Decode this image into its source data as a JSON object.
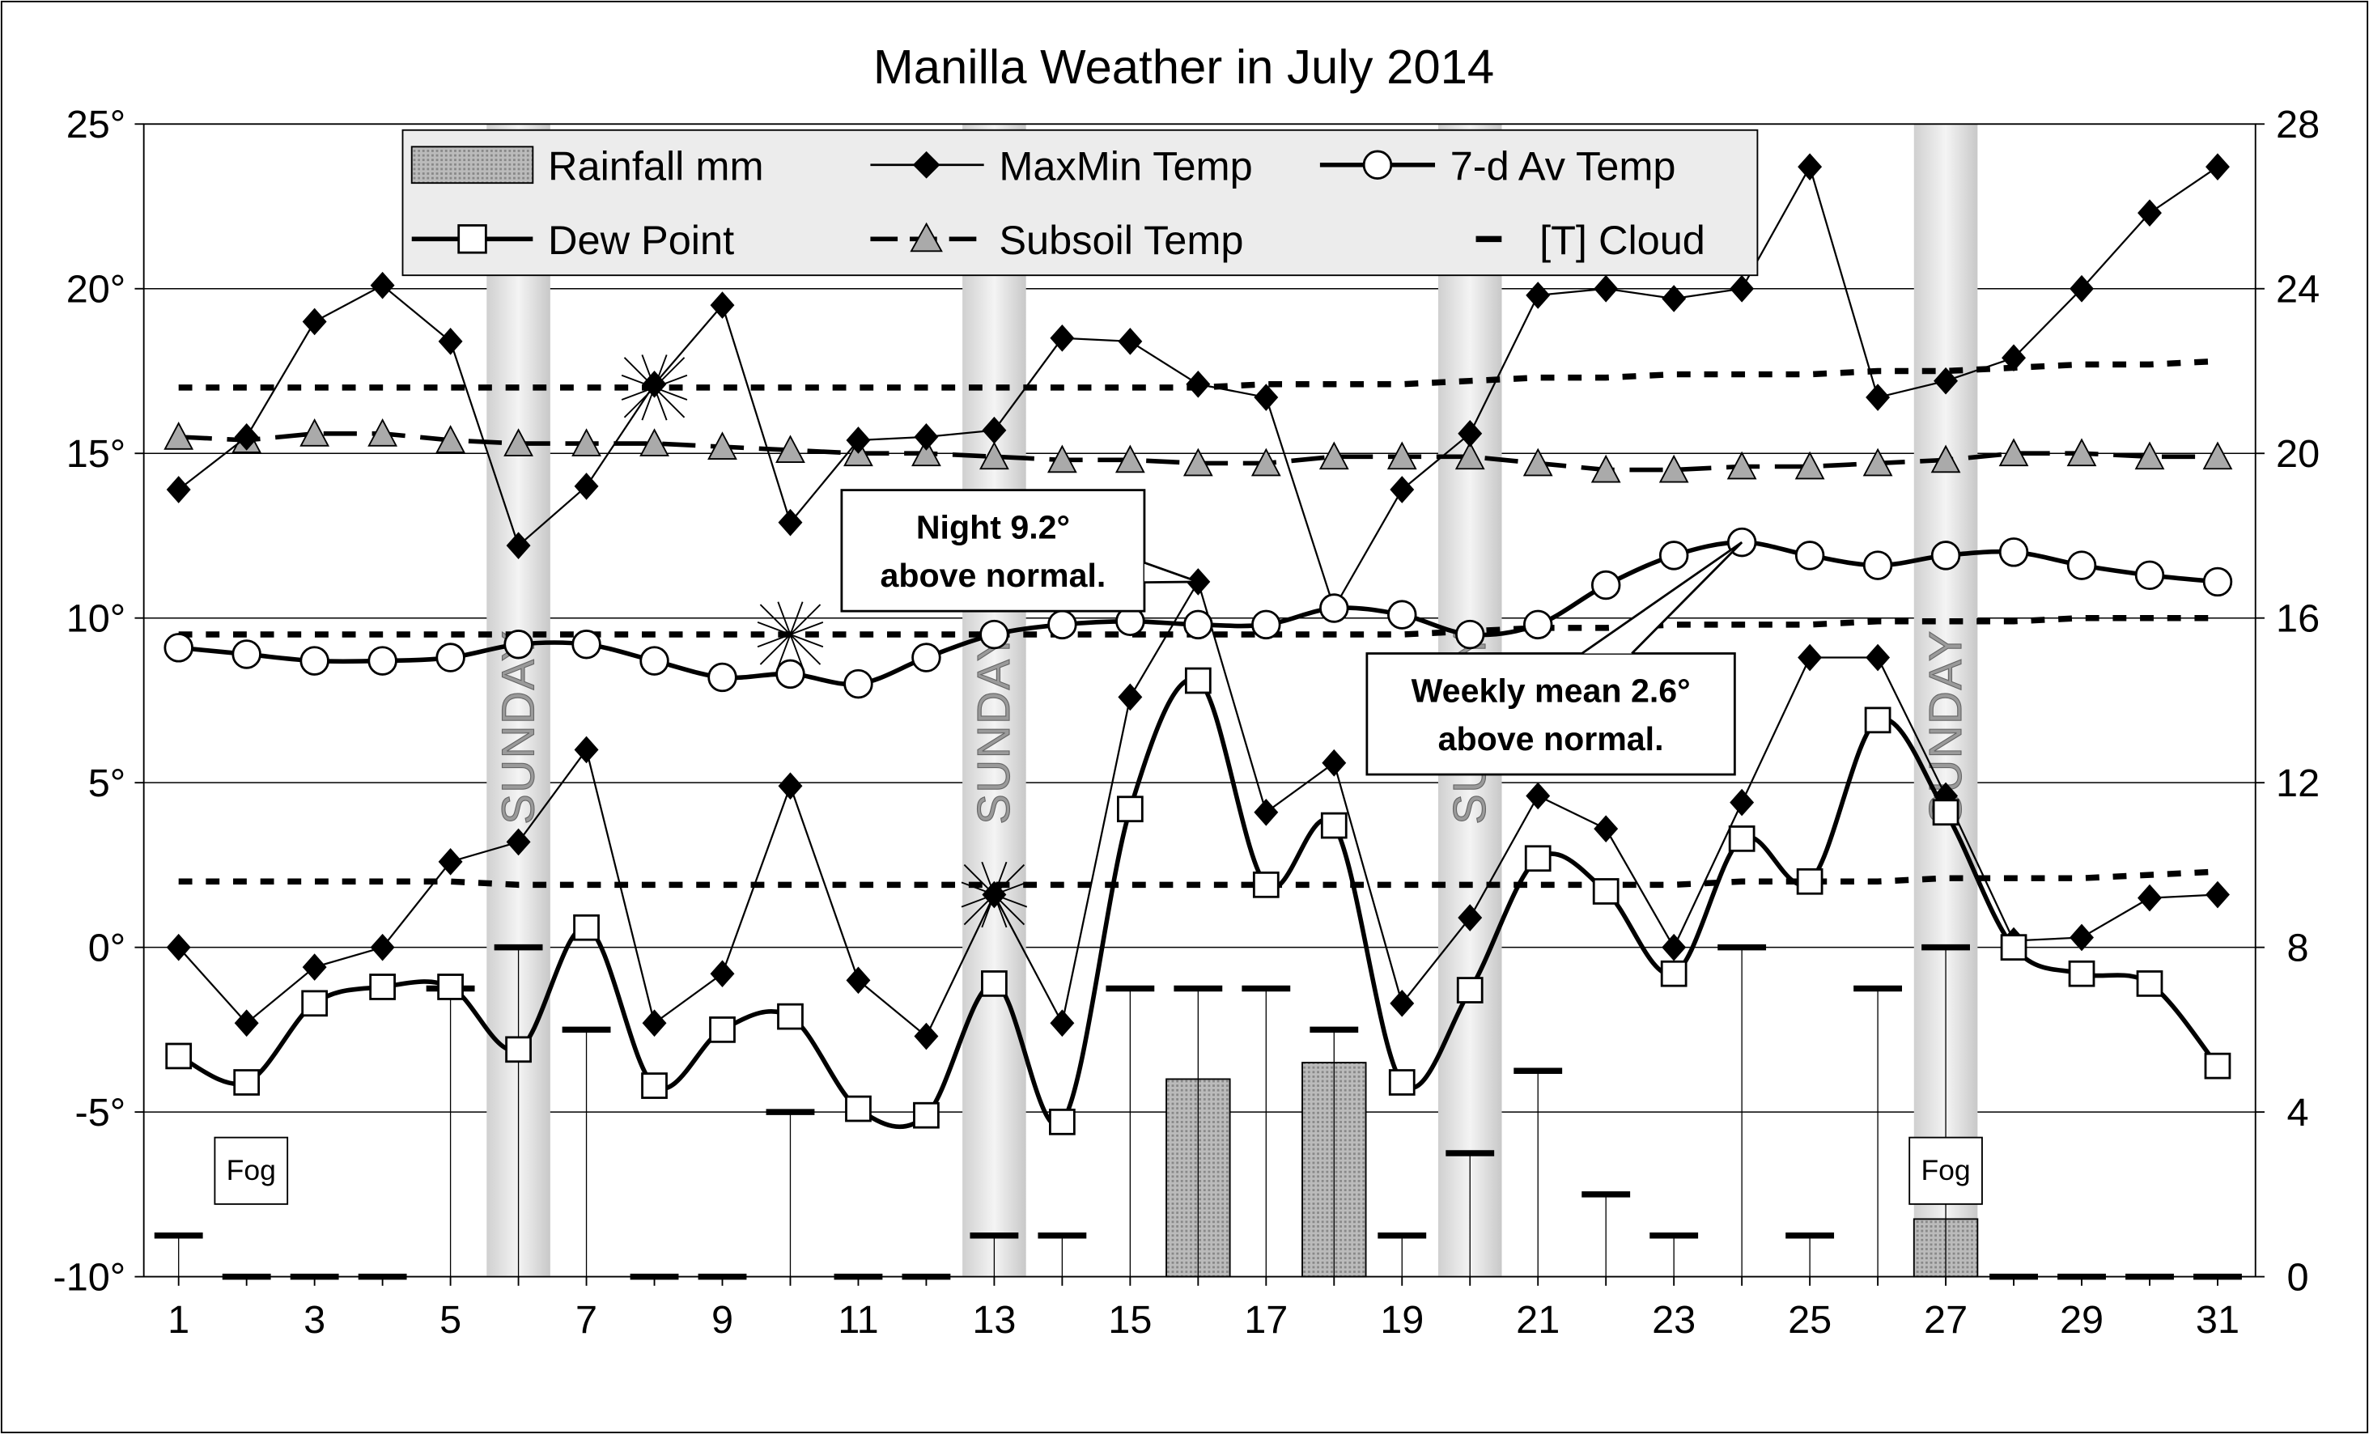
{
  "chart_data": {
    "type": "line",
    "title": "Manilla Weather in July 2014",
    "x": [
      1,
      2,
      3,
      4,
      5,
      6,
      7,
      8,
      9,
      10,
      11,
      12,
      13,
      14,
      15,
      16,
      17,
      18,
      19,
      20,
      21,
      22,
      23,
      24,
      25,
      26,
      27,
      28,
      29,
      30,
      31
    ],
    "x_tick_labels": [
      "1",
      "3",
      "5",
      "7",
      "9",
      "11",
      "13",
      "15",
      "17",
      "19",
      "21",
      "23",
      "25",
      "27",
      "29",
      "31"
    ],
    "y_left": {
      "range": [
        -10,
        25
      ],
      "ticks": [
        "-10°",
        "-5°",
        "0°",
        "5°",
        "10°",
        "15°",
        "20°",
        "25°"
      ]
    },
    "y_right": {
      "range": [
        0,
        28
      ],
      "ticks": [
        "0",
        "4",
        "8",
        "12",
        "16",
        "20",
        "24",
        "28"
      ]
    },
    "grid": "horizontal",
    "legend": {
      "placement": "top",
      "entries": [
        "Rainfall mm",
        "MaxMin Temp",
        "7-d Av Temp",
        "Dew Point",
        "Subsoil Temp",
        "[T] Cloud"
      ]
    },
    "series": [
      {
        "name": "Max Temp",
        "legend": "MaxMin Temp",
        "axis": "left",
        "values": [
          13.9,
          15.5,
          19.0,
          20.1,
          18.4,
          12.2,
          14.0,
          17.1,
          19.5,
          12.9,
          15.4,
          15.5,
          15.7,
          18.5,
          18.4,
          17.1,
          16.7,
          10.3,
          13.9,
          15.6,
          19.8,
          20.0,
          19.7,
          20.0,
          23.7,
          16.7,
          17.2,
          17.9,
          20.0,
          22.3,
          23.7
        ]
      },
      {
        "name": "Min Temp",
        "legend": "MaxMin Temp",
        "axis": "left",
        "values": [
          0.0,
          -2.3,
          -0.6,
          0.0,
          2.6,
          3.2,
          6.0,
          -2.3,
          -0.8,
          4.9,
          -1.0,
          -2.7,
          1.6,
          -2.3,
          7.6,
          11.1,
          4.1,
          5.6,
          -1.7,
          0.9,
          4.6,
          3.6,
          0.0,
          4.4,
          8.8,
          8.8,
          4.6,
          0.2,
          0.3,
          1.5,
          1.6
        ]
      },
      {
        "name": "7-d Av Temp",
        "axis": "left",
        "values": [
          9.1,
          8.9,
          8.7,
          8.7,
          8.8,
          9.2,
          9.2,
          8.7,
          8.2,
          8.3,
          8.0,
          8.8,
          9.5,
          9.8,
          9.9,
          9.8,
          9.8,
          10.3,
          10.1,
          9.5,
          9.8,
          11.0,
          11.9,
          12.3,
          11.9,
          11.6,
          11.9,
          12.0,
          11.6,
          11.3,
          11.1
        ]
      },
      {
        "name": "Dew Point",
        "axis": "left",
        "values": [
          -3.3,
          -4.1,
          -1.7,
          -1.2,
          -1.2,
          -3.1,
          0.6,
          -4.2,
          -2.5,
          -2.1,
          -4.9,
          -5.1,
          -1.1,
          -5.3,
          4.2,
          8.1,
          1.9,
          3.7,
          -4.1,
          -1.3,
          2.7,
          1.7,
          -0.8,
          3.3,
          2.0,
          6.9,
          4.1,
          0.0,
          -0.8,
          -1.1,
          -3.6
        ]
      },
      {
        "name": "Subsoil Temp",
        "axis": "left",
        "values": [
          15.5,
          15.4,
          15.6,
          15.6,
          15.4,
          15.3,
          15.3,
          15.3,
          15.2,
          15.1,
          15.0,
          15.0,
          14.9,
          14.8,
          14.8,
          14.7,
          14.7,
          14.9,
          14.9,
          14.9,
          14.7,
          14.5,
          14.5,
          14.6,
          14.6,
          14.7,
          14.8,
          15.0,
          15.0,
          14.9,
          14.9
        ]
      },
      {
        "name": "Normal Max",
        "axis": "left",
        "style": "dotted",
        "values": [
          17.0,
          17.0,
          17.0,
          17.0,
          17.0,
          17.0,
          17.0,
          17.0,
          17.0,
          17.0,
          17.0,
          17.0,
          17.0,
          17.0,
          17.0,
          17.0,
          17.1,
          17.1,
          17.1,
          17.2,
          17.3,
          17.3,
          17.4,
          17.4,
          17.4,
          17.5,
          17.5,
          17.6,
          17.7,
          17.7,
          17.8
        ]
      },
      {
        "name": "Normal Mean",
        "axis": "left",
        "style": "dotted",
        "values": [
          9.5,
          9.5,
          9.5,
          9.5,
          9.5,
          9.5,
          9.5,
          9.5,
          9.5,
          9.5,
          9.5,
          9.5,
          9.5,
          9.5,
          9.5,
          9.5,
          9.5,
          9.5,
          9.5,
          9.6,
          9.7,
          9.7,
          9.8,
          9.8,
          9.8,
          9.9,
          9.9,
          9.9,
          10.0,
          10.0,
          10.0
        ]
      },
      {
        "name": "Normal Min",
        "axis": "left",
        "style": "dotted",
        "values": [
          2.0,
          2.0,
          2.0,
          2.0,
          2.0,
          1.9,
          1.9,
          1.9,
          1.9,
          1.9,
          1.9,
          1.9,
          1.9,
          1.9,
          1.9,
          1.9,
          1.9,
          1.9,
          1.9,
          1.9,
          1.9,
          1.9,
          1.9,
          2.0,
          2.0,
          2.0,
          2.1,
          2.1,
          2.1,
          2.2,
          2.3
        ]
      },
      {
        "name": "[T] Cloud",
        "axis": "right",
        "style": "dash",
        "values": [
          1,
          0,
          0,
          0,
          7,
          8,
          6,
          0,
          0,
          4,
          0,
          0,
          1,
          1,
          7,
          7,
          7,
          6,
          1,
          3,
          5,
          2,
          1,
          8,
          1,
          7,
          8,
          0,
          0,
          0,
          0
        ]
      },
      {
        "name": "Rainfall mm",
        "axis": "right",
        "style": "bar",
        "values": [
          0,
          0,
          0,
          0,
          0,
          0,
          0,
          0,
          0,
          0,
          0,
          0,
          0,
          0,
          0,
          4.8,
          0,
          5.2,
          0,
          0,
          0,
          0,
          0,
          0,
          0,
          0,
          1.4,
          0,
          0,
          0,
          0
        ]
      }
    ],
    "sundays": [
      6,
      13,
      20,
      27
    ],
    "sunday_label": "SUNDAY",
    "record_markers": [
      {
        "day": 8,
        "value": 17.0
      },
      {
        "day": 10,
        "value": 9.5
      },
      {
        "day": 13,
        "value": 1.6
      }
    ],
    "annotations": [
      {
        "lines": [
          "Night 9.2°",
          "above normal."
        ],
        "day": 16,
        "value": 11.1
      },
      {
        "lines": [
          "Weekly mean 2.6°",
          "above normal."
        ],
        "day": 24,
        "value": 12.3
      }
    ],
    "fog_days": [
      2,
      27
    ],
    "fog_label": "Fog"
  }
}
